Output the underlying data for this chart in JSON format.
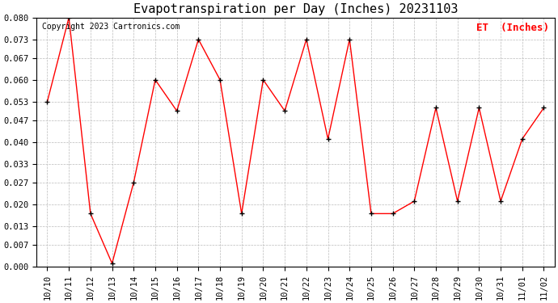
{
  "title": "Evapotranspiration per Day (Inches) 20231103",
  "copyright_text": "Copyright 2023 Cartronics.com",
  "legend_label": "ET  (Inches)",
  "dates": [
    "10/10",
    "10/11",
    "10/12",
    "10/13",
    "10/14",
    "10/15",
    "10/16",
    "10/17",
    "10/18",
    "10/19",
    "10/20",
    "10/21",
    "10/22",
    "10/23",
    "10/24",
    "10/25",
    "10/26",
    "10/27",
    "10/28",
    "10/29",
    "10/30",
    "10/31",
    "11/01",
    "11/02"
  ],
  "values": [
    0.053,
    0.08,
    0.017,
    0.001,
    0.027,
    0.06,
    0.05,
    0.073,
    0.06,
    0.017,
    0.06,
    0.05,
    0.073,
    0.041,
    0.073,
    0.017,
    0.017,
    0.021,
    0.051,
    0.021,
    0.051,
    0.021,
    0.041,
    0.051
  ],
  "ylim": [
    0.0,
    0.08
  ],
  "yticks": [
    0.0,
    0.007,
    0.013,
    0.02,
    0.027,
    0.033,
    0.04,
    0.047,
    0.053,
    0.06,
    0.067,
    0.073,
    0.08
  ],
  "line_color": "red",
  "marker": "+",
  "marker_color": "black",
  "background_color": "white",
  "grid_color": "#bbbbbb",
  "title_fontsize": 11,
  "tick_fontsize": 7.5,
  "legend_color": "red",
  "legend_fontsize": 9,
  "copyright_color": "black",
  "copyright_fontsize": 7
}
